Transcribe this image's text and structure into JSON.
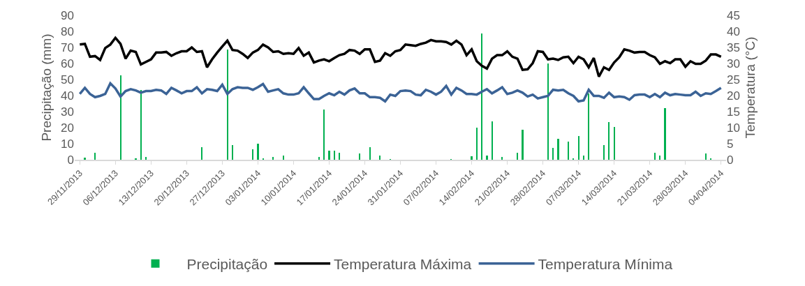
{
  "chart_data": {
    "type": "bar",
    "ylabel": "Precipitação (mm)",
    "y2label": "Temperatura (°C)",
    "x": [
      "2013-11-29",
      "2013-11-30",
      "2013-12-01",
      "2013-12-02",
      "2013-12-03",
      "2013-12-04",
      "2013-12-05",
      "2013-12-06",
      "2013-12-07",
      "2013-12-08",
      "2013-12-09",
      "2013-12-10",
      "2013-12-11",
      "2013-12-12",
      "2013-12-13",
      "2013-12-14",
      "2013-12-15",
      "2013-12-16",
      "2013-12-17",
      "2013-12-18",
      "2013-12-19",
      "2013-12-20",
      "2013-12-21",
      "2013-12-22",
      "2013-12-23",
      "2013-12-24",
      "2013-12-25",
      "2013-12-26",
      "2013-12-27",
      "2013-12-28",
      "2013-12-29",
      "2013-12-30",
      "2013-12-31",
      "2014-01-01",
      "2014-01-02",
      "2014-01-03",
      "2014-01-04",
      "2014-01-05",
      "2014-01-06",
      "2014-01-07",
      "2014-01-08",
      "2014-01-09",
      "2014-01-10",
      "2014-01-11",
      "2014-01-12",
      "2014-01-13",
      "2014-01-14",
      "2014-01-15",
      "2014-01-16",
      "2014-01-17",
      "2014-01-18",
      "2014-01-19",
      "2014-01-20",
      "2014-01-21",
      "2014-01-22",
      "2014-01-23",
      "2014-01-24",
      "2014-01-25",
      "2014-01-26",
      "2014-01-27",
      "2014-01-28",
      "2014-01-29",
      "2014-01-30",
      "2014-01-31",
      "2014-02-01",
      "2014-02-02",
      "2014-02-03",
      "2014-02-04",
      "2014-02-05",
      "2014-02-06",
      "2014-02-07",
      "2014-02-08",
      "2014-02-09",
      "2014-02-10",
      "2014-02-11",
      "2014-02-12",
      "2014-02-13",
      "2014-02-14",
      "2014-02-15",
      "2014-02-16",
      "2014-02-17",
      "2014-02-18",
      "2014-02-19",
      "2014-02-20",
      "2014-02-21",
      "2014-02-22",
      "2014-02-23",
      "2014-02-24",
      "2014-02-25",
      "2014-02-26",
      "2014-02-27",
      "2014-02-28",
      "2014-03-01",
      "2014-03-02",
      "2014-03-03",
      "2014-03-04",
      "2014-03-05",
      "2014-03-06",
      "2014-03-07",
      "2014-03-08",
      "2014-03-09",
      "2014-03-10",
      "2014-03-11",
      "2014-03-12",
      "2014-03-13",
      "2014-03-14",
      "2014-03-15",
      "2014-03-16",
      "2014-03-17",
      "2014-03-18",
      "2014-03-19",
      "2014-03-20",
      "2014-03-21",
      "2014-03-22",
      "2014-03-23",
      "2014-03-24",
      "2014-03-25",
      "2014-03-26",
      "2014-03-27",
      "2014-03-28",
      "2014-03-29",
      "2014-03-30",
      "2014-03-31",
      "2014-04-01",
      "2014-04-02",
      "2014-04-03",
      "2014-04-04"
    ],
    "series": [
      {
        "name": "Precipitação",
        "color": "#00b050",
        "values": [
          0,
          1.5,
          0,
          4.2,
          0,
          0,
          0,
          0,
          52.6,
          0,
          0,
          0.9,
          43.6,
          1.7,
          0,
          0,
          0,
          0,
          0,
          0,
          0,
          0,
          0,
          0,
          7.8,
          0,
          0,
          0,
          0,
          68.5,
          9,
          0,
          0,
          0,
          6.7,
          10.2,
          0.7,
          0,
          1.9,
          0,
          2.7,
          0,
          0,
          0,
          0,
          0,
          0,
          1.9,
          31.4,
          5.5,
          5.6,
          4.2,
          0,
          0,
          0,
          3.9,
          0,
          7.7,
          0,
          2.8,
          0,
          0.5,
          0,
          0,
          0,
          0,
          0,
          0,
          0,
          0,
          0,
          0,
          0,
          0.5,
          0,
          0,
          0,
          2.3,
          20.1,
          78.9,
          2.6,
          24,
          0,
          1.9,
          0,
          0,
          4.5,
          18.5,
          0,
          0,
          0,
          0,
          60.1,
          7.3,
          13.2,
          0,
          11.3,
          0.8,
          15,
          2.8,
          41.1,
          0,
          0,
          9.3,
          23.4,
          20.4,
          0,
          0,
          0,
          0,
          0,
          0,
          0,
          4.5,
          2.4,
          32.3,
          0,
          0,
          0,
          0,
          0,
          0,
          0,
          3.9,
          0.8,
          0,
          0
        ]
      },
      {
        "name": "Temperatura Máxima",
        "type": "line",
        "axis": "y2",
        "color": "#000000",
        "values": [
          35.9,
          36.1,
          32.1,
          32.3,
          31.1,
          34.8,
          35.9,
          38,
          36.1,
          31.5,
          34,
          33.6,
          29.7,
          30.5,
          31.3,
          33.4,
          33.4,
          33.6,
          32.4,
          33.2,
          33.8,
          33.8,
          35,
          33.6,
          33.8,
          28.8,
          31.3,
          33.4,
          35.3,
          37.1,
          34.2,
          34,
          33,
          31.7,
          33.4,
          34.2,
          35.9,
          35,
          33.6,
          33.8,
          33,
          33.2,
          33,
          34.8,
          32.4,
          33.4,
          30.3,
          30.9,
          31.3,
          30.7,
          31.7,
          32.6,
          33,
          34.2,
          34,
          33,
          34.4,
          34.4,
          30.5,
          30.9,
          33.2,
          32.4,
          33.8,
          34.2,
          35.9,
          35.7,
          35.5,
          36.1,
          36.5,
          37.3,
          36.9,
          36.9,
          36.7,
          35.9,
          37.1,
          35.9,
          32.6,
          34.4,
          30.7,
          29.3,
          28.4,
          31.5,
          32.6,
          32.6,
          33.8,
          32.1,
          31.5,
          28,
          28.2,
          30.1,
          33.8,
          33.6,
          31.3,
          31.5,
          31.1,
          31.9,
          32.1,
          30.1,
          32.1,
          31.3,
          28.8,
          31.7,
          25.9,
          28.8,
          28,
          30.3,
          31.9,
          34.4,
          34,
          33.4,
          33.6,
          33.6,
          32.6,
          31.9,
          29.9,
          30.7,
          30.1,
          31.3,
          31.3,
          29,
          30.7,
          29.9,
          29.9,
          30.9,
          32.8,
          32.8,
          32.1
        ]
      },
      {
        "name": "Temperatura Mínima",
        "type": "line",
        "axis": "y2",
        "color": "#3b6396",
        "values": [
          20.5,
          22.4,
          20.5,
          19.5,
          19.9,
          20.5,
          23.8,
          22.2,
          19.7,
          21.4,
          22,
          21.6,
          20.9,
          21.4,
          21.4,
          21.8,
          21.6,
          20.5,
          22.4,
          21.6,
          20.7,
          21.4,
          21.4,
          22.6,
          20.7,
          22,
          21.8,
          21.4,
          23.4,
          20.5,
          22,
          22.6,
          22.4,
          22.4,
          21.8,
          22.6,
          23.6,
          21.2,
          21.6,
          22,
          20.7,
          20.3,
          20.3,
          20.7,
          22.6,
          20.7,
          18.9,
          18.9,
          19.9,
          20.7,
          20.1,
          21.2,
          20.3,
          21.6,
          22.2,
          20.7,
          20.7,
          19.5,
          19.5,
          19.3,
          18.2,
          20.3,
          19.9,
          21.4,
          21.6,
          21.4,
          20.3,
          20.1,
          21.8,
          21.2,
          20.3,
          21.2,
          23,
          20.3,
          22.4,
          21.6,
          20.5,
          20.5,
          20.3,
          21.2,
          22,
          20.7,
          21.6,
          22.6,
          20.5,
          20.9,
          21.6,
          20.9,
          19.7,
          20.3,
          19.1,
          19.5,
          19.9,
          21.8,
          21.6,
          21.8,
          20.7,
          19.9,
          18.2,
          18.5,
          21.8,
          19.9,
          19.9,
          19.3,
          20.9,
          19.5,
          19.7,
          19.5,
          18.7,
          20.1,
          20.3,
          20.3,
          19.5,
          20.5,
          19.5,
          20.9,
          20.1,
          20.5,
          20.3,
          20.1,
          20.1,
          21.2,
          19.9,
          20.7,
          20.5,
          21.4,
          22.4
        ]
      }
    ],
    "xlim": [
      "2013-11-28",
      "2014-04-05"
    ],
    "xticks": [
      {
        "value": "2013-11-29",
        "label": "29/11/2013"
      },
      {
        "value": "2013-12-06",
        "label": "06/12/2013"
      },
      {
        "value": "2013-12-13",
        "label": "13/12/2013"
      },
      {
        "value": "2013-12-20",
        "label": "20/12/2013"
      },
      {
        "value": "2013-12-27",
        "label": "27/12/2013"
      },
      {
        "value": "2014-01-03",
        "label": "03/01/2014"
      },
      {
        "value": "2014-01-10",
        "label": "10/01/2014"
      },
      {
        "value": "2014-01-17",
        "label": "17/01/2014"
      },
      {
        "value": "2014-01-24",
        "label": "24/01/2014"
      },
      {
        "value": "2014-01-31",
        "label": "31/01/2014"
      },
      {
        "value": "2014-02-07",
        "label": "07/02/2014"
      },
      {
        "value": "2014-02-14",
        "label": "14/02/2014"
      },
      {
        "value": "2014-02-21",
        "label": "21/02/2014"
      },
      {
        "value": "2014-02-28",
        "label": "28/02/2014"
      },
      {
        "value": "2014-03-07",
        "label": "07/03/2014"
      },
      {
        "value": "2014-03-14",
        "label": "14/03/2014"
      },
      {
        "value": "2014-03-21",
        "label": "21/03/2014"
      },
      {
        "value": "2014-03-28",
        "label": "28/03/2014"
      },
      {
        "value": "2014-04-04",
        "label": "04/04/2014"
      }
    ],
    "ylim": [
      0,
      90
    ],
    "yticks": [
      0,
      10,
      20,
      30,
      40,
      50,
      60,
      70,
      80,
      90
    ],
    "y2lim": [
      0,
      45
    ],
    "y2ticks": [
      0,
      5,
      10,
      15,
      20,
      25,
      30,
      35,
      40,
      45
    ],
    "grid": false,
    "legend": "bottom"
  }
}
